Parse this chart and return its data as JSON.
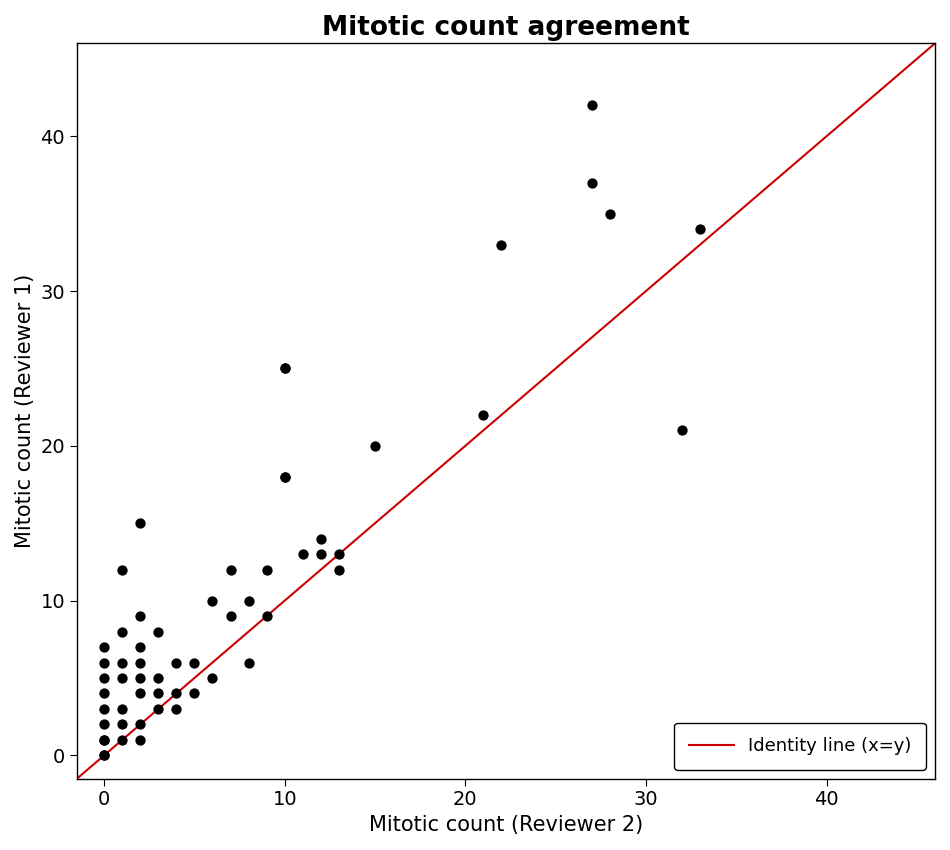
{
  "title": "Mitotic count agreement",
  "xlabel": "Mitotic count (Reviewer 2)",
  "ylabel": "Mitotic count (Reviewer 1)",
  "xlim": [
    -1.5,
    46
  ],
  "ylim": [
    -1.5,
    46
  ],
  "xticks": [
    0,
    10,
    20,
    30,
    40
  ],
  "yticks": [
    0,
    10,
    20,
    30,
    40
  ],
  "identity_line_color": "#cc0000",
  "legend_label": "Identity line (x=y)",
  "point_color": "#000000",
  "point_size": 55,
  "background_color": "#ffffff",
  "title_fontsize": 19,
  "axis_fontsize": 15,
  "tick_fontsize": 14,
  "x": [
    0,
    0,
    0,
    0,
    0,
    0,
    0,
    0,
    0,
    0,
    1,
    1,
    1,
    1,
    1,
    1,
    1,
    2,
    2,
    2,
    2,
    2,
    2,
    2,
    2,
    3,
    3,
    3,
    3,
    4,
    4,
    4,
    5,
    5,
    6,
    6,
    7,
    7,
    8,
    8,
    9,
    9,
    10,
    10,
    10,
    10,
    11,
    12,
    12,
    13,
    13,
    15,
    21,
    22,
    27,
    27,
    28,
    32,
    33
  ],
  "y": [
    0,
    0,
    1,
    1,
    2,
    3,
    4,
    5,
    6,
    7,
    1,
    2,
    3,
    5,
    6,
    8,
    12,
    1,
    2,
    4,
    5,
    6,
    7,
    9,
    15,
    3,
    4,
    5,
    8,
    3,
    4,
    6,
    4,
    6,
    5,
    10,
    9,
    12,
    6,
    10,
    9,
    12,
    18,
    18,
    25,
    25,
    13,
    13,
    14,
    12,
    13,
    20,
    22,
    33,
    37,
    42,
    35,
    21,
    34
  ]
}
